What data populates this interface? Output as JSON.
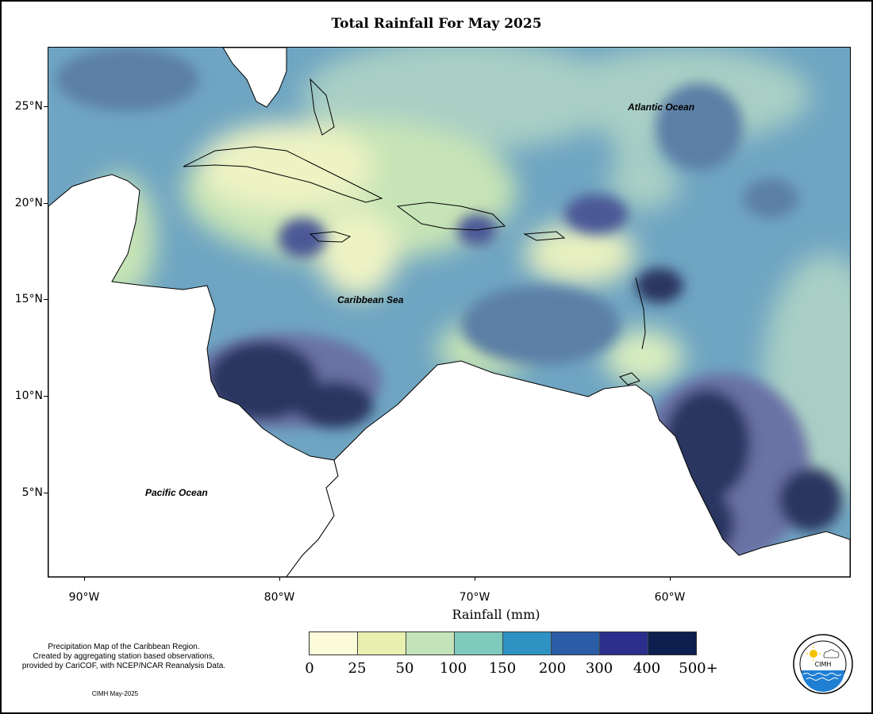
{
  "title": "Total Rainfall For May 2025",
  "map": {
    "lat_ticks": [
      "25°N",
      "20°N",
      "15°N",
      "10°N",
      "5°N"
    ],
    "lon_ticks": [
      "90°W",
      "80°W",
      "70°W",
      "60°W"
    ],
    "xlabel": "Rainfall (mm)",
    "labels": {
      "atlantic": "Atlantic Ocean",
      "caribbean": "Caribbean Sea",
      "pacific": "Pacific Ocean"
    }
  },
  "legend": {
    "labels": [
      "0",
      "25",
      "50",
      "100",
      "150",
      "200",
      "300",
      "400",
      "500+"
    ],
    "colors": [
      "#fbfbd9",
      "#e8f0b0",
      "#c3e3b8",
      "#7fc9bd",
      "#2e93c3",
      "#2a5da6",
      "#2b2e8c",
      "#0d1f4f"
    ]
  },
  "note": {
    "line1": "Precipitation Map of the Caribbean Region.",
    "line2": "Created by aggregating station based observations,",
    "line3": "provided by CariCOF, with NCEP/NCAR Reanalysis Data.",
    "credit": "CIMH May-2025"
  },
  "logo": {
    "text": "CIMH",
    "ring_text": "Caribbean Institute for Meteorology and Hydrology"
  }
}
